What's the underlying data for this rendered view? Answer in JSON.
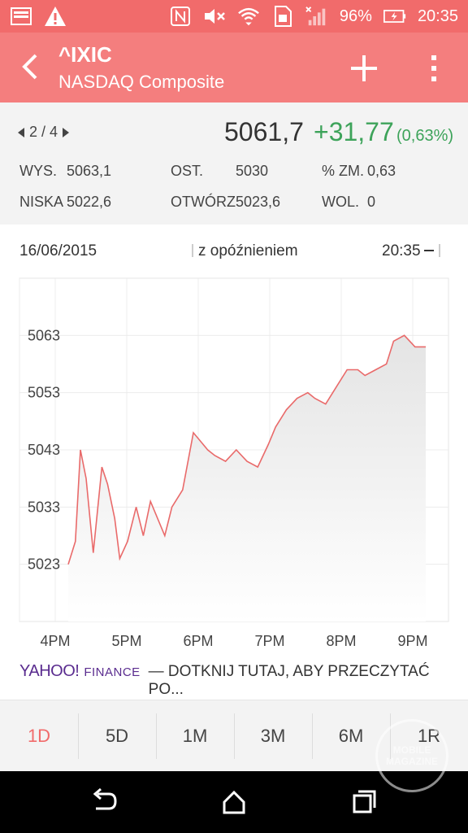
{
  "statusbar": {
    "battery": "96%",
    "time": "20:35",
    "icons": [
      "image-icon",
      "warning-icon",
      "nfc-icon",
      "mute-icon",
      "wifi-icon",
      "sim-icon",
      "signal-icon",
      "battery-icon"
    ]
  },
  "appbar": {
    "title": "^IXIC",
    "subtitle": "NASDAQ Composite"
  },
  "quote": {
    "pager": "2 / 4",
    "price": "5061,7",
    "change": "+31,77",
    "pct": "(0,63%)",
    "stats": [
      {
        "label": "WYS.",
        "value": "5063,1"
      },
      {
        "label": "OST.",
        "value": "5030"
      },
      {
        "label": "% ZM.",
        "value": "0,63"
      },
      {
        "label": "NISKA",
        "value": "5022,6"
      },
      {
        "label": "OTWÓRZ",
        "value": "5023,6"
      },
      {
        "label": "WOL.",
        "value": "0"
      }
    ]
  },
  "chart_header": {
    "date": "16/06/2015",
    "delay": "z opóźnieniem",
    "time": "20:35"
  },
  "chart_data": {
    "type": "area",
    "yticks": [
      "5063",
      "5053",
      "5043",
      "5033",
      "5023"
    ],
    "xticks": [
      "4PM",
      "5PM",
      "6PM",
      "7PM",
      "8PM",
      "9PM"
    ],
    "ylim": [
      5013,
      5073
    ],
    "xlim": [
      15.5,
      21.5
    ],
    "x": [
      15.5,
      15.6,
      15.67,
      15.75,
      15.85,
      15.97,
      16.05,
      16.15,
      16.22,
      16.33,
      16.45,
      16.55,
      16.65,
      16.75,
      16.85,
      16.95,
      17.1,
      17.25,
      17.45,
      17.55,
      17.7,
      17.85,
      18.0,
      18.15,
      18.3,
      18.4,
      18.55,
      18.7,
      18.85,
      18.95,
      19.1,
      19.25,
      19.4,
      19.55,
      19.65,
      19.8,
      19.95,
      20.05,
      20.2,
      20.35,
      20.5
    ],
    "values": [
      5023,
      5027,
      5043,
      5038,
      5025,
      5040,
      5037,
      5031,
      5024,
      5027,
      5033,
      5028,
      5034,
      5031,
      5028,
      5033,
      5036,
      5046,
      5043,
      5042,
      5041,
      5043,
      5041,
      5040,
      5044,
      5047,
      5050,
      5052,
      5053,
      5052,
      5051,
      5054,
      5057,
      5057,
      5056,
      5057,
      5058,
      5062,
      5063,
      5061,
      5061
    ],
    "color": "#e96a6a"
  },
  "attribution": {
    "logo": "YAHOO!",
    "finance": "FINANCE",
    "text": "— DOTKNIJ TUTAJ, ABY PRZECZYTAĆ PO..."
  },
  "ranges": [
    "1D",
    "5D",
    "1M",
    "3M",
    "6M",
    "1R"
  ],
  "watermark": "MOBILE MAGAZINE"
}
